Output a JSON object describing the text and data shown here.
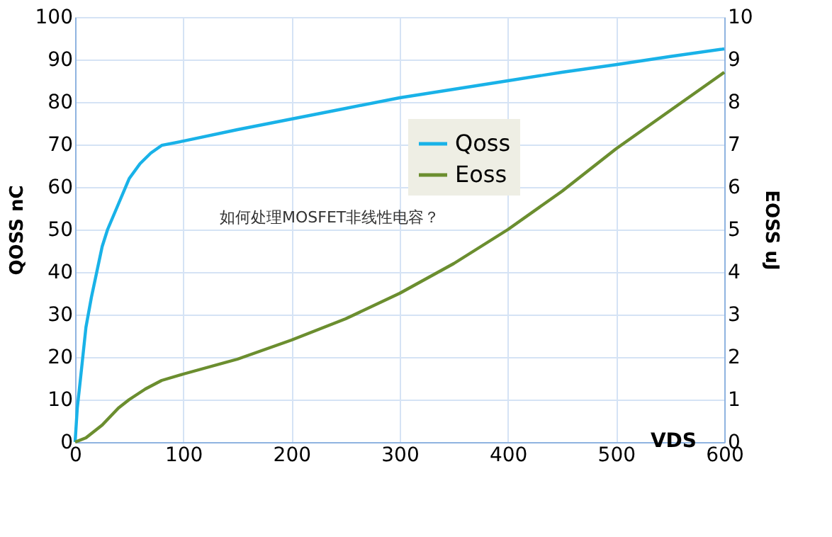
{
  "chart_data": {
    "type": "line",
    "xlabel": "VDS",
    "ylabel": "QOSS nC",
    "y2label": "EOSS uJ",
    "annotations": [
      "如何处理MOSFET非线性电容？"
    ],
    "series": [
      {
        "name": "Qoss",
        "color": "#19b2e8",
        "x": [
          0,
          2,
          5,
          10,
          15,
          20,
          25,
          30,
          40,
          50,
          60,
          70,
          80,
          100,
          150,
          200,
          250,
          300,
          350,
          400,
          450,
          500,
          550,
          600
        ],
        "values": [
          0,
          8,
          15,
          27,
          34,
          40,
          46,
          50,
          56,
          62,
          65.5,
          68,
          69.8,
          70.8,
          73.5,
          76,
          78.5,
          81,
          83,
          85,
          87,
          88.8,
          90.7,
          92.5
        ]
      },
      {
        "name": "Eoss",
        "color": "#6b8e2f",
        "axis": "y2",
        "x": [
          0,
          10,
          25,
          40,
          50,
          65,
          80,
          100,
          150,
          200,
          250,
          300,
          350,
          400,
          450,
          500,
          550,
          600
        ],
        "values": [
          0,
          0.1,
          0.4,
          0.8,
          1.0,
          1.25,
          1.45,
          1.6,
          1.95,
          2.4,
          2.9,
          3.5,
          4.2,
          5.0,
          5.9,
          6.9,
          7.8,
          8.7
        ]
      }
    ],
    "xlim": [
      0,
      600
    ],
    "xticks": [
      0,
      100,
      200,
      300,
      400,
      500,
      600
    ],
    "ylim": [
      0,
      100
    ],
    "yticks": [
      0,
      10,
      20,
      30,
      40,
      50,
      60,
      70,
      80,
      90,
      100
    ],
    "y2lim": [
      0,
      10
    ],
    "y2ticks": [
      0,
      1,
      2,
      3,
      4,
      5,
      6,
      7,
      8,
      9,
      10
    ],
    "grid": true,
    "legend": "right",
    "marker": "none",
    "line_style": "solid"
  }
}
